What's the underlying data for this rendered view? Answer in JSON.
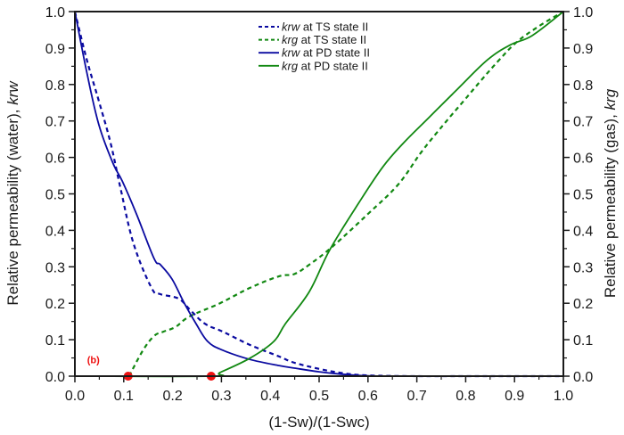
{
  "chart_data": {
    "type": "line",
    "title": "",
    "xlabel": "(1-Sw)/(1-Swc)",
    "ylabel_left": {
      "prefix": "Relative permeability (water), ",
      "italic": "krw"
    },
    "ylabel_right": {
      "prefix": "Relative permeability (gas), ",
      "italic": "krg"
    },
    "xlim": [
      0.0,
      1.0
    ],
    "ylim_left": [
      0.0,
      1.0
    ],
    "ylim_right": [
      0.0,
      1.0
    ],
    "grid": false,
    "legend_position": "top-center",
    "xticks": [
      "0.0",
      "0.1",
      "0.2",
      "0.3",
      "0.4",
      "0.5",
      "0.6",
      "0.7",
      "0.8",
      "0.9",
      "1.0"
    ],
    "yticks_left": [
      "0.0",
      "0.1",
      "0.2",
      "0.3",
      "0.4",
      "0.5",
      "0.6",
      "0.7",
      "0.8",
      "0.9",
      "1.0"
    ],
    "yticks_right": [
      "0.0",
      "0.1",
      "0.2",
      "0.3",
      "0.4",
      "0.5",
      "0.6",
      "0.7",
      "0.8",
      "0.9",
      "1.0"
    ],
    "series": [
      {
        "name": "krw at TS state II",
        "legend_italic": "krw",
        "legend_rest": " at TS state II",
        "color": "#0a0aa0",
        "dash": true,
        "axis": "left",
        "x": [
          0.0,
          0.024,
          0.049,
          0.073,
          0.093,
          0.12,
          0.157,
          0.175,
          0.212,
          0.235,
          0.266,
          0.303,
          0.358,
          0.418,
          0.449,
          0.5,
          0.55,
          0.6,
          0.7,
          0.8,
          0.9,
          1.0
        ],
        "y": [
          1.0,
          0.87,
          0.755,
          0.64,
          0.518,
          0.364,
          0.242,
          0.225,
          0.213,
          0.183,
          0.144,
          0.122,
          0.086,
          0.054,
          0.037,
          0.02,
          0.008,
          0.002,
          0.0,
          0.0,
          0.0,
          0.0
        ]
      },
      {
        "name": "krg at TS state II",
        "legend_italic": "krg",
        "legend_rest": " at TS state II",
        "color": "#118811",
        "dash": true,
        "axis": "right",
        "x": [
          0.111,
          0.139,
          0.162,
          0.181,
          0.206,
          0.235,
          0.297,
          0.358,
          0.418,
          0.449,
          0.48,
          0.527,
          0.6,
          0.662,
          0.71,
          0.759,
          0.796,
          0.832,
          0.869,
          0.905,
          0.95,
          1.0
        ],
        "y": [
          0.0,
          0.07,
          0.11,
          0.122,
          0.135,
          0.164,
          0.2,
          0.242,
          0.274,
          0.28,
          0.306,
          0.355,
          0.445,
          0.526,
          0.616,
          0.697,
          0.755,
          0.812,
          0.868,
          0.917,
          0.96,
          1.0
        ]
      },
      {
        "name": "krw at PD state II",
        "legend_italic": "krw",
        "legend_rest": " at PD state II",
        "color": "#0a0aa0",
        "dash": false,
        "axis": "left",
        "x": [
          0.0,
          0.024,
          0.049,
          0.078,
          0.097,
          0.126,
          0.162,
          0.175,
          0.199,
          0.224,
          0.248,
          0.272,
          0.303,
          0.358,
          0.418,
          0.45,
          0.5,
          0.55,
          0.6,
          0.7,
          0.8,
          0.9,
          1.0
        ],
        "y": [
          1.0,
          0.836,
          0.69,
          0.584,
          0.535,
          0.445,
          0.323,
          0.306,
          0.266,
          0.2,
          0.144,
          0.095,
          0.071,
          0.046,
          0.029,
          0.022,
          0.012,
          0.005,
          0.001,
          0.0,
          0.0,
          0.0,
          0.0
        ]
      },
      {
        "name": "krg at PD state II",
        "legend_italic": "krg",
        "legend_rest": " at PD state II",
        "color": "#118811",
        "dash": false,
        "axis": "right",
        "x": [
          0.0,
          0.279,
          0.297,
          0.358,
          0.407,
          0.431,
          0.48,
          0.522,
          0.582,
          0.631,
          0.673,
          0.723,
          0.783,
          0.845,
          0.892,
          0.936,
          1.0
        ],
        "y": [
          0.0,
          0.0,
          0.01,
          0.049,
          0.095,
          0.144,
          0.232,
          0.347,
          0.477,
          0.575,
          0.64,
          0.707,
          0.787,
          0.868,
          0.909,
          0.934,
          1.0
        ]
      }
    ],
    "markers": [
      {
        "x": 0.109,
        "y": 0.0,
        "color": "#ee1111"
      },
      {
        "x": 0.279,
        "y": 0.0,
        "color": "#ee1111"
      }
    ],
    "annotation": {
      "text": "(b)",
      "x": 0.025,
      "y": 0.035,
      "color": "#ee1111"
    }
  }
}
